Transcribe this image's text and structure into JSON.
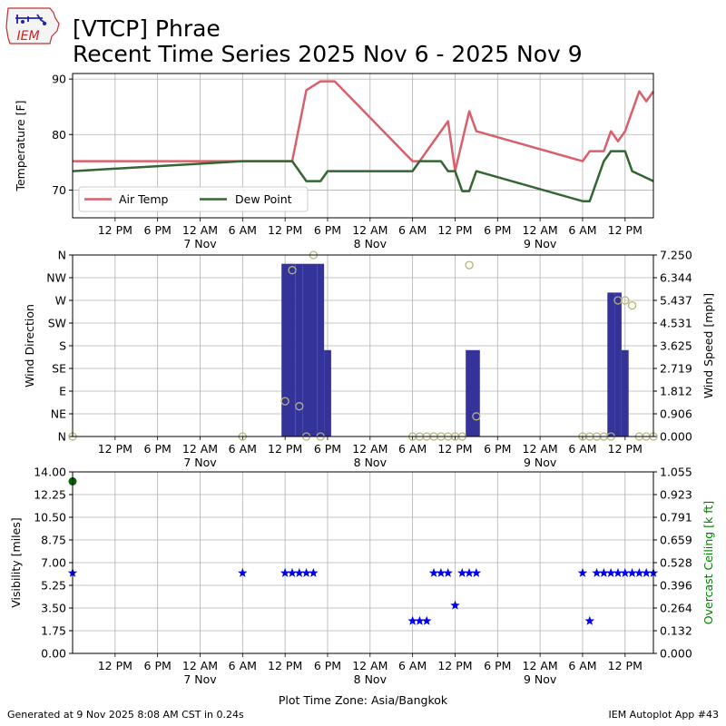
{
  "header": {
    "logo_text": "IEM",
    "title_line1": "[VTCP] Phrae",
    "title_line2": "Recent Time Series 2025 Nov 6 - 2025 Nov 9"
  },
  "footer": {
    "generated": "Generated at 9 Nov 2025 8:08 AM CST in 0.24s",
    "app": "IEM Autoplot App #43",
    "timezone_label": "Plot Time Zone: Asia/Bangkok"
  },
  "colors": {
    "air_temp": "#d9606b",
    "dew_point": "#336633",
    "wind_speed": "#333399",
    "wind_dir": "#b5b57a",
    "visibility": "#0000ee",
    "ceiling": "#006600",
    "ceiling_label": "#008000",
    "grid": "#b0b0b0"
  },
  "chart_data": [
    {
      "type": "line",
      "x_unit": "hours since 2025-11-06 00:00 Asia/Bangkok",
      "ylabel": "Temperature [F]",
      "ylim": [
        65,
        91
      ],
      "yticks": [
        70,
        80,
        90
      ],
      "xlim": [
        0,
        82
      ],
      "grid": true,
      "legend_position": "lower-left",
      "series": [
        {
          "name": "Air Temp",
          "x": [
            0,
            24,
            30,
            31,
            33,
            35,
            37,
            48,
            49,
            53,
            54,
            56,
            57,
            72,
            73,
            75,
            76,
            77,
            78,
            79,
            80,
            81,
            82
          ],
          "y": [
            75.2,
            75.2,
            75.2,
            75.2,
            88,
            89.6,
            89.6,
            75.2,
            75.2,
            82.4,
            73.4,
            84.2,
            80.6,
            75.2,
            77,
            77,
            80.6,
            78.8,
            80.6,
            84.2,
            87.8,
            86,
            87.8
          ]
        },
        {
          "name": "Dew Point",
          "x": [
            0,
            24,
            27,
            30,
            31,
            32,
            33,
            35,
            36,
            48,
            49,
            50,
            51,
            52,
            53,
            54,
            55,
            56,
            57,
            72,
            73,
            75,
            76,
            77,
            78,
            79,
            82
          ],
          "y": [
            73.4,
            75.2,
            75.2,
            75.2,
            75.2,
            73.4,
            71.6,
            71.6,
            73.4,
            73.4,
            75.2,
            75.2,
            75.2,
            75.2,
            73.4,
            73.4,
            69.8,
            69.8,
            73.4,
            68,
            68,
            75.2,
            77,
            77,
            77,
            73.4,
            71.6
          ]
        }
      ]
    },
    {
      "type": "bar",
      "ylabel": "Wind Direction",
      "y2label": "Wind Speed [mph]",
      "ylim": [
        0,
        360
      ],
      "yticks": [
        "N",
        "NE",
        "E",
        "SE",
        "S",
        "SW",
        "W",
        "NW",
        "N"
      ],
      "y2lim": [
        0,
        7.25
      ],
      "y2ticks": [
        "0.000",
        "0.906",
        "1.812",
        "2.719",
        "3.625",
        "4.531",
        "5.437",
        "6.344",
        "7.250"
      ],
      "xlim": [
        0,
        82
      ],
      "grid": true,
      "series": [
        {
          "name": "Wind Speed",
          "x": [
            30,
            31,
            32,
            33,
            34,
            35,
            36,
            56,
            57,
            76,
            77,
            78
          ],
          "values": [
            6.9,
            6.9,
            6.9,
            6.9,
            6.9,
            6.9,
            3.45,
            3.45,
            3.45,
            5.75,
            5.75,
            3.45
          ]
        },
        {
          "name": "Wind Direction",
          "type": "scatter",
          "x": [
            0,
            24,
            30,
            31,
            32,
            33,
            34,
            35,
            48,
            49,
            50,
            51,
            52,
            53,
            54,
            55,
            56,
            57,
            72,
            73,
            74,
            75,
            76,
            77,
            78,
            79,
            80,
            81,
            82
          ],
          "values": [
            0,
            0,
            70,
            330,
            60,
            0,
            360,
            0,
            0,
            0,
            0,
            0,
            0,
            0,
            0,
            0,
            340,
            40,
            0,
            0,
            0,
            0,
            0,
            270,
            270,
            260,
            0,
            0,
            0
          ]
        }
      ]
    },
    {
      "type": "scatter",
      "ylabel": "Visibility [miles]",
      "y2label": "Overcast Ceiling [k ft]",
      "ylim": [
        0,
        14
      ],
      "yticks": [
        "0.00",
        "1.75",
        "3.50",
        "5.25",
        "7.00",
        "8.75",
        "10.50",
        "12.25",
        "14.00"
      ],
      "y2lim": [
        0,
        1.055
      ],
      "y2ticks": [
        "0.000",
        "0.132",
        "0.264",
        "0.396",
        "0.528",
        "0.659",
        "0.791",
        "0.923",
        "1.055"
      ],
      "xlim": [
        0,
        82
      ],
      "grid": true,
      "series": [
        {
          "name": "Visibility",
          "x": [
            0,
            24,
            30,
            31,
            32,
            33,
            34,
            48,
            49,
            50,
            51,
            52,
            53,
            54,
            55,
            56,
            57,
            72,
            73,
            74,
            75,
            76,
            77,
            78,
            79,
            80,
            81,
            82
          ],
          "values": [
            6.2,
            6.2,
            6.2,
            6.2,
            6.2,
            6.2,
            6.2,
            2.5,
            2.5,
            2.5,
            6.2,
            6.2,
            6.2,
            3.7,
            6.2,
            6.2,
            6.2,
            6.2,
            2.5,
            6.2,
            6.2,
            6.2,
            6.2,
            6.2,
            6.2,
            6.2,
            6.2,
            6.2
          ]
        },
        {
          "name": "Overcast Ceiling",
          "x": [
            0
          ],
          "values": [
            1.0
          ]
        }
      ]
    }
  ],
  "x_axis": {
    "ticks": [
      {
        "x": 6,
        "label": "12 PM"
      },
      {
        "x": 12,
        "label": "6 PM"
      },
      {
        "x": 18,
        "label": "12 AM",
        "date": "7 Nov"
      },
      {
        "x": 24,
        "label": "6 AM"
      },
      {
        "x": 30,
        "label": "12 PM"
      },
      {
        "x": 36,
        "label": "6 PM"
      },
      {
        "x": 42,
        "label": "12 AM",
        "date": "8 Nov"
      },
      {
        "x": 48,
        "label": "6 AM"
      },
      {
        "x": 54,
        "label": "12 PM"
      },
      {
        "x": 60,
        "label": "6 PM"
      },
      {
        "x": 66,
        "label": "12 AM",
        "date": "9 Nov"
      },
      {
        "x": 72,
        "label": "6 AM"
      },
      {
        "x": 78,
        "label": "12 PM"
      }
    ]
  }
}
